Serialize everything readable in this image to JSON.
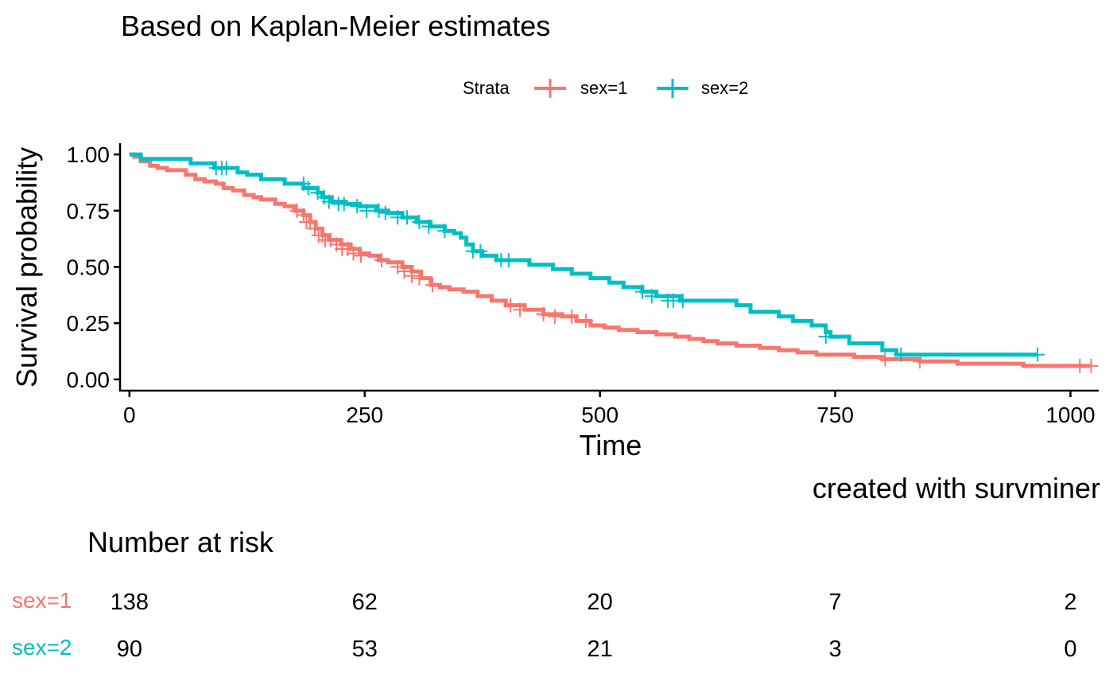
{
  "title": "Based on Kaplan-Meier estimates",
  "caption": "created with survminer",
  "colors": {
    "sex1": "#F8766D",
    "sex2": "#00BFC4",
    "axis": "#000000"
  },
  "chart_data": {
    "type": "line",
    "step": true,
    "xlabel": "Time",
    "ylabel": "Survival probability",
    "xlim": [
      -10,
      1030
    ],
    "ylim": [
      -0.05,
      1.05
    ],
    "xticks": [
      0,
      250,
      500,
      750,
      1000
    ],
    "yticks": [
      0,
      0.25,
      0.5,
      0.75,
      1.0
    ],
    "ytick_labels": [
      "0.00",
      "0.25",
      "0.50",
      "0.75",
      "1.00"
    ],
    "grid": false,
    "legend": {
      "title": "Strata",
      "position": "top",
      "entries": [
        "sex=1",
        "sex=2"
      ]
    },
    "series": [
      {
        "name": "sex=1",
        "color": "#F8766D",
        "steps": [
          [
            0,
            1.0
          ],
          [
            5,
            0.99
          ],
          [
            12,
            0.97
          ],
          [
            22,
            0.95
          ],
          [
            30,
            0.94
          ],
          [
            40,
            0.93
          ],
          [
            60,
            0.91
          ],
          [
            70,
            0.89
          ],
          [
            80,
            0.88
          ],
          [
            92,
            0.87
          ],
          [
            100,
            0.85
          ],
          [
            110,
            0.84
          ],
          [
            122,
            0.82
          ],
          [
            132,
            0.81
          ],
          [
            140,
            0.8
          ],
          [
            155,
            0.78
          ],
          [
            165,
            0.77
          ],
          [
            175,
            0.75
          ],
          [
            185,
            0.73
          ],
          [
            192,
            0.7
          ],
          [
            198,
            0.67
          ],
          [
            205,
            0.64
          ],
          [
            212,
            0.62
          ],
          [
            225,
            0.6
          ],
          [
            235,
            0.58
          ],
          [
            245,
            0.56
          ],
          [
            255,
            0.55
          ],
          [
            265,
            0.53
          ],
          [
            275,
            0.52
          ],
          [
            290,
            0.5
          ],
          [
            300,
            0.48
          ],
          [
            310,
            0.45
          ],
          [
            320,
            0.42
          ],
          [
            330,
            0.41
          ],
          [
            340,
            0.4
          ],
          [
            355,
            0.39
          ],
          [
            370,
            0.37
          ],
          [
            385,
            0.35
          ],
          [
            400,
            0.33
          ],
          [
            420,
            0.31
          ],
          [
            440,
            0.29
          ],
          [
            460,
            0.28
          ],
          [
            475,
            0.26
          ],
          [
            490,
            0.24
          ],
          [
            505,
            0.23
          ],
          [
            520,
            0.22
          ],
          [
            540,
            0.21
          ],
          [
            560,
            0.2
          ],
          [
            580,
            0.19
          ],
          [
            595,
            0.18
          ],
          [
            610,
            0.17
          ],
          [
            625,
            0.16
          ],
          [
            645,
            0.15
          ],
          [
            670,
            0.14
          ],
          [
            690,
            0.13
          ],
          [
            710,
            0.12
          ],
          [
            730,
            0.11
          ],
          [
            770,
            0.1
          ],
          [
            800,
            0.09
          ],
          [
            840,
            0.08
          ],
          [
            880,
            0.07
          ],
          [
            950,
            0.06
          ],
          [
            1022,
            0.06
          ]
        ],
        "censor": [
          [
            178,
            0.75
          ],
          [
            185,
            0.73
          ],
          [
            188,
            0.7
          ],
          [
            192,
            0.7
          ],
          [
            197,
            0.67
          ],
          [
            201,
            0.64
          ],
          [
            205,
            0.64
          ],
          [
            208,
            0.62
          ],
          [
            214,
            0.62
          ],
          [
            220,
            0.6
          ],
          [
            226,
            0.58
          ],
          [
            232,
            0.58
          ],
          [
            238,
            0.56
          ],
          [
            246,
            0.55
          ],
          [
            268,
            0.53
          ],
          [
            285,
            0.5
          ],
          [
            292,
            0.48
          ],
          [
            300,
            0.46
          ],
          [
            308,
            0.45
          ],
          [
            322,
            0.42
          ],
          [
            405,
            0.33
          ],
          [
            415,
            0.31
          ],
          [
            440,
            0.29
          ],
          [
            452,
            0.28
          ],
          [
            470,
            0.28
          ],
          [
            485,
            0.26
          ],
          [
            803,
            0.09
          ],
          [
            840,
            0.08
          ],
          [
            1010,
            0.06
          ],
          [
            1022,
            0.06
          ]
        ]
      },
      {
        "name": "sex=2",
        "color": "#00BFC4",
        "steps": [
          [
            0,
            1.0
          ],
          [
            12,
            0.98
          ],
          [
            65,
            0.96
          ],
          [
            90,
            0.94
          ],
          [
            115,
            0.92
          ],
          [
            125,
            0.91
          ],
          [
            140,
            0.89
          ],
          [
            165,
            0.87
          ],
          [
            185,
            0.85
          ],
          [
            200,
            0.83
          ],
          [
            205,
            0.81
          ],
          [
            215,
            0.79
          ],
          [
            230,
            0.78
          ],
          [
            245,
            0.77
          ],
          [
            262,
            0.75
          ],
          [
            275,
            0.74
          ],
          [
            290,
            0.72
          ],
          [
            305,
            0.7
          ],
          [
            320,
            0.68
          ],
          [
            335,
            0.66
          ],
          [
            345,
            0.65
          ],
          [
            352,
            0.63
          ],
          [
            358,
            0.6
          ],
          [
            365,
            0.57
          ],
          [
            375,
            0.55
          ],
          [
            390,
            0.53
          ],
          [
            425,
            0.51
          ],
          [
            450,
            0.49
          ],
          [
            470,
            0.47
          ],
          [
            490,
            0.45
          ],
          [
            510,
            0.43
          ],
          [
            525,
            0.41
          ],
          [
            545,
            0.39
          ],
          [
            560,
            0.37
          ],
          [
            585,
            0.35
          ],
          [
            645,
            0.33
          ],
          [
            660,
            0.3
          ],
          [
            690,
            0.28
          ],
          [
            705,
            0.26
          ],
          [
            725,
            0.24
          ],
          [
            740,
            0.21
          ],
          [
            745,
            0.19
          ],
          [
            765,
            0.16
          ],
          [
            800,
            0.13
          ],
          [
            815,
            0.11
          ],
          [
            965,
            0.11
          ]
        ],
        "censor": [
          [
            92,
            0.94
          ],
          [
            98,
            0.94
          ],
          [
            103,
            0.94
          ],
          [
            185,
            0.87
          ],
          [
            190,
            0.85
          ],
          [
            200,
            0.83
          ],
          [
            207,
            0.81
          ],
          [
            212,
            0.79
          ],
          [
            222,
            0.78
          ],
          [
            228,
            0.78
          ],
          [
            242,
            0.77
          ],
          [
            252,
            0.75
          ],
          [
            265,
            0.75
          ],
          [
            272,
            0.74
          ],
          [
            285,
            0.72
          ],
          [
            295,
            0.72
          ],
          [
            308,
            0.7
          ],
          [
            318,
            0.68
          ],
          [
            335,
            0.66
          ],
          [
            365,
            0.57
          ],
          [
            373,
            0.57
          ],
          [
            395,
            0.53
          ],
          [
            403,
            0.53
          ],
          [
            545,
            0.39
          ],
          [
            555,
            0.37
          ],
          [
            572,
            0.35
          ],
          [
            578,
            0.35
          ],
          [
            588,
            0.35
          ],
          [
            740,
            0.19
          ],
          [
            820,
            0.11
          ],
          [
            965,
            0.11
          ]
        ]
      }
    ]
  },
  "risk_table": {
    "title": "Number at risk",
    "times": [
      0,
      250,
      500,
      750,
      1000
    ],
    "rows": [
      {
        "label": "sex=1",
        "color": "#F8766D",
        "values": [
          "138",
          "62",
          "20",
          "7",
          "2"
        ]
      },
      {
        "label": "sex=2",
        "color": "#00BFC4",
        "values": [
          "90",
          "53",
          "21",
          "3",
          "0"
        ]
      }
    ]
  }
}
